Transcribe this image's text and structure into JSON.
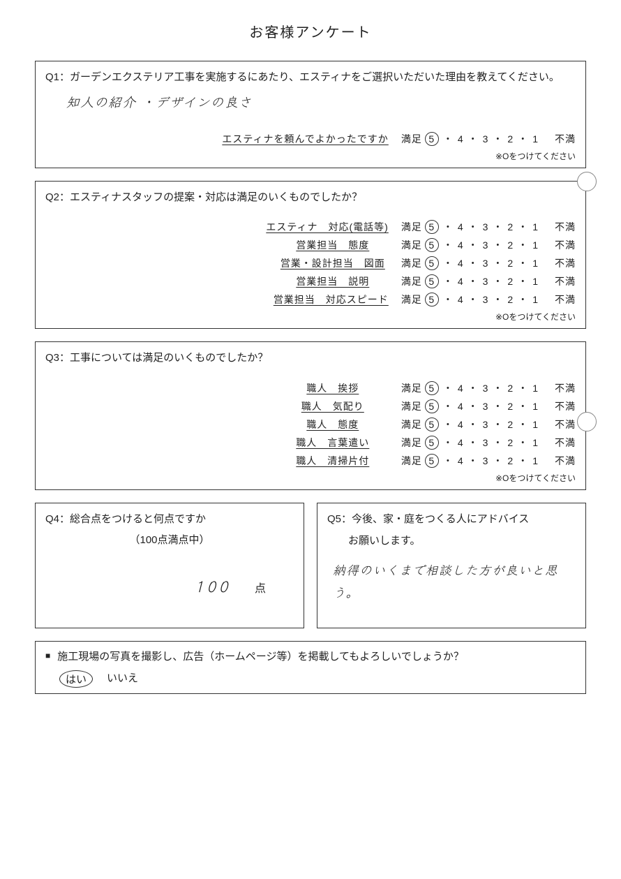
{
  "title": "お客様アンケート",
  "note_circle": "※Oをつけてください",
  "scale": {
    "left": "満足",
    "right": "不満",
    "values": [
      "5",
      "4",
      "3",
      "2",
      "1"
    ]
  },
  "q1": {
    "label": "Q1：ガーデンエクステリア工事を実施するにあたり、エスティナをご選択いただいた理由を教えてください。",
    "answer_hand": "知人の紹介 ・デザインの良さ",
    "rating_label": "エスティナを頼んでよかったですか",
    "selected": "5"
  },
  "q2": {
    "label": "Q2：エスティナスタッフの提案・対応は満足のいくものでしたか？",
    "rows": [
      {
        "label": "エスティナ　対応(電話等)",
        "selected": "5"
      },
      {
        "label": "営業担当　態度",
        "selected": "5"
      },
      {
        "label": "営業・設計担当　図面",
        "selected": "5"
      },
      {
        "label": "営業担当　説明",
        "selected": "5"
      },
      {
        "label": "営業担当　対応スピード",
        "selected": "5"
      }
    ]
  },
  "q3": {
    "label": "Q3：工事については満足のいくものでしたか？",
    "rows": [
      {
        "label": "職人　挨拶",
        "selected": "5"
      },
      {
        "label": "職人　気配り",
        "selected": "5"
      },
      {
        "label": "職人　態度",
        "selected": "5"
      },
      {
        "label": "職人　言葉遣い",
        "selected": "5"
      },
      {
        "label": "職人　清掃片付",
        "selected": "5"
      }
    ]
  },
  "q4": {
    "label": "Q4：総合点をつけると何点ですか",
    "sub": "（100点満点中）",
    "score_hand": "100",
    "unit": "点"
  },
  "q5": {
    "label": "Q5：今後、家・庭をつくる人にアドバイス",
    "sub": "お願いします。",
    "answer_hand": "納得のいくまで相談した方が良いと思う。"
  },
  "perm": {
    "text": "施工現場の写真を撮影し、広告（ホームページ等）を掲載してもよろしいでしょうか？",
    "yes": "はい",
    "no": "いいえ",
    "selected": "yes"
  }
}
